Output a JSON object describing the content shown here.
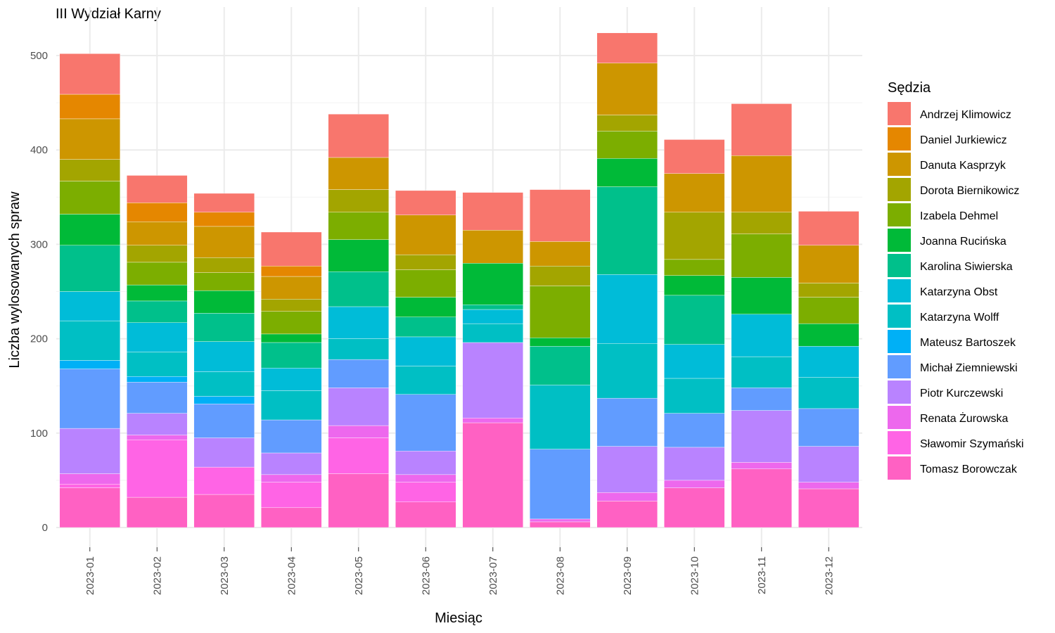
{
  "chart_data": {
    "type": "bar",
    "stacked": true,
    "title": "III Wydział Karny",
    "xlabel": "Miesiąc",
    "ylabel": "Liczba wylosowanych spraw",
    "ylim": [
      0,
      530
    ],
    "yticks": [
      0,
      100,
      200,
      300,
      400,
      500
    ],
    "grid": true,
    "legend_title": "Sędzia",
    "legend_position": "right",
    "categories": [
      "2023-01",
      "2023-02",
      "2023-03",
      "2023-04",
      "2023-05",
      "2023-06",
      "2023-07",
      "2023-08",
      "2023-09",
      "2023-10",
      "2023-11",
      "2023-12"
    ],
    "series": [
      {
        "name": "Tomasz Borowczak",
        "color": "#FF61C3",
        "values": [
          42,
          32,
          35,
          21,
          57,
          27,
          111,
          6,
          28,
          42,
          62,
          41
        ]
      },
      {
        "name": "Sławomir Szymański",
        "color": "#FF64E5",
        "values": [
          4,
          61,
          29,
          27,
          38,
          21,
          0,
          0,
          0,
          0,
          0,
          0
        ]
      },
      {
        "name": "Renata Żurowska",
        "color": "#ED68ED",
        "values": [
          11,
          5,
          0,
          8,
          13,
          8,
          5,
          3,
          9,
          8,
          7,
          7
        ]
      },
      {
        "name": "Piotr Kurczewski",
        "color": "#B983FF",
        "values": [
          48,
          23,
          31,
          23,
          40,
          25,
          80,
          0,
          49,
          35,
          55,
          38
        ]
      },
      {
        "name": "Michał Ziemniewski",
        "color": "#619CFF",
        "values": [
          63,
          33,
          36,
          35,
          30,
          60,
          0,
          74,
          51,
          36,
          24,
          40
        ]
      },
      {
        "name": "Mateusz Bartoszek",
        "color": "#00B0F6",
        "values": [
          9,
          6,
          8,
          0,
          0,
          0,
          0,
          0,
          0,
          0,
          0,
          0
        ]
      },
      {
        "name": "Katarzyna Wolff",
        "color": "#00BFC4",
        "values": [
          42,
          26,
          26,
          31,
          22,
          30,
          20,
          68,
          58,
          37,
          33,
          33
        ]
      },
      {
        "name": "Katarzyna Obst",
        "color": "#00BCD8",
        "values": [
          31,
          31,
          32,
          24,
          34,
          31,
          15,
          0,
          73,
          36,
          45,
          33
        ]
      },
      {
        "name": "Karolina Siwierska",
        "color": "#00C08B",
        "values": [
          49,
          23,
          30,
          27,
          37,
          21,
          5,
          41,
          93,
          52,
          0,
          0
        ]
      },
      {
        "name": "Joanna Rucińska",
        "color": "#00BA38",
        "values": [
          33,
          17,
          24,
          9,
          34,
          21,
          44,
          9,
          30,
          21,
          39,
          24
        ]
      },
      {
        "name": "Izabela Dehmel",
        "color": "#7CAE00",
        "values": [
          35,
          24,
          19,
          24,
          29,
          29,
          0,
          55,
          29,
          17,
          46,
          28
        ]
      },
      {
        "name": "Dorota Biernikowicz",
        "color": "#A3A500",
        "values": [
          23,
          18,
          16,
          13,
          24,
          16,
          0,
          21,
          17,
          50,
          23,
          15
        ]
      },
      {
        "name": "Danuta Kasprzyk",
        "color": "#CD9600",
        "values": [
          43,
          25,
          33,
          24,
          34,
          42,
          35,
          26,
          55,
          41,
          60,
          40
        ]
      },
      {
        "name": "Daniel Jurkiewicz",
        "color": "#E58700",
        "values": [
          26,
          20,
          15,
          11,
          0,
          0,
          0,
          0,
          0,
          0,
          0,
          0
        ]
      },
      {
        "name": "Andrzej Klimowicz",
        "color": "#F8766D",
        "values": [
          43,
          29,
          20,
          36,
          46,
          26,
          40,
          55,
          32,
          36,
          55,
          36
        ]
      }
    ]
  }
}
